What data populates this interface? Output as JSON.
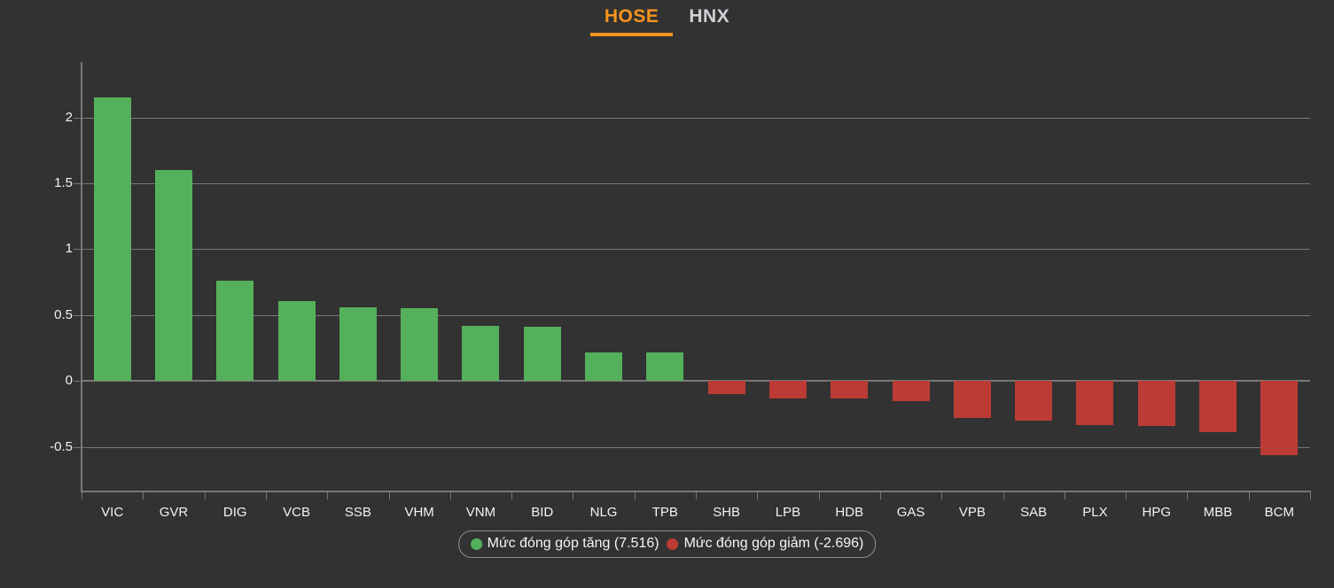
{
  "tabs": [
    {
      "label": "HOSE",
      "active": true
    },
    {
      "label": "HNX",
      "active": false
    }
  ],
  "colors": {
    "background": "#323232",
    "positive": "#55b05b",
    "negative": "#bc3b34",
    "accent": "#f7941e",
    "inactive_tab": "#ced2d6",
    "grid": "#787878",
    "text": "#f2f2f2",
    "legend_border": "#8e8e8e"
  },
  "legend": {
    "increase_label": "Mức đóng góp tăng (7.516)",
    "decrease_label": "Mức đóng góp giảm (-2.696)"
  },
  "chart_data": {
    "type": "bar",
    "categories": [
      "VIC",
      "GVR",
      "DIG",
      "VCB",
      "SSB",
      "VHM",
      "VNM",
      "BID",
      "NLG",
      "TPB",
      "SHB",
      "LPB",
      "HDB",
      "GAS",
      "VPB",
      "SAB",
      "PLX",
      "HPG",
      "MBB",
      "BCM"
    ],
    "values": [
      2.15,
      1.6,
      0.76,
      0.61,
      0.56,
      0.55,
      0.42,
      0.41,
      0.22,
      0.22,
      -0.1,
      -0.13,
      -0.13,
      -0.15,
      -0.28,
      -0.3,
      -0.33,
      -0.34,
      -0.39,
      -0.56
    ],
    "title": "",
    "xlabel": "",
    "ylabel": "",
    "ylim": [
      -0.83,
      2.42
    ],
    "yticks": [
      2,
      1.5,
      1,
      0.5,
      0,
      -0.5
    ],
    "grid": true,
    "legend_position": "bottom",
    "positive_total": 7.516,
    "negative_total": -2.696
  }
}
